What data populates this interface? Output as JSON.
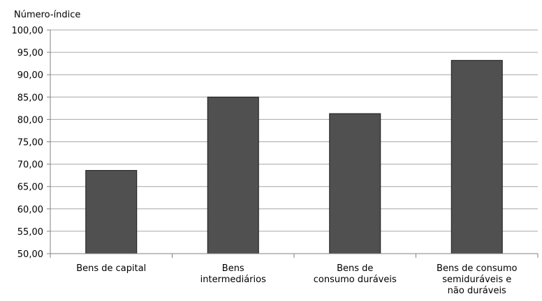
{
  "chart_data": {
    "type": "bar",
    "ylabel": "Número-índice",
    "xlabel": "",
    "title": "",
    "ylim": [
      50,
      100
    ],
    "yticks": [
      "100,00",
      "95,00",
      "90,00",
      "85,00",
      "80,00",
      "75,00",
      "70,00",
      "65,00",
      "60,00",
      "55,00",
      "50,00"
    ],
    "categories": [
      [
        "Bens de capital"
      ],
      [
        "Bens",
        "intermediários"
      ],
      [
        "Bens de",
        "consumo duráveis"
      ],
      [
        "Bens de consumo",
        "semiduráveis e",
        "não duráveis"
      ]
    ],
    "values": [
      68.6,
      85.0,
      81.3,
      93.2
    ],
    "grid": true,
    "bar_color": "#505050"
  }
}
